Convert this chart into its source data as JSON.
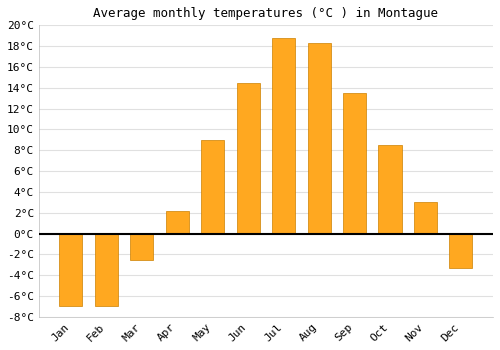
{
  "title": "Average monthly temperatures (°C ) in Montague",
  "months": [
    "Jan",
    "Feb",
    "Mar",
    "Apr",
    "May",
    "Jun",
    "Jul",
    "Aug",
    "Sep",
    "Oct",
    "Nov",
    "Dec"
  ],
  "values": [
    -7.0,
    -7.0,
    -2.5,
    2.2,
    9.0,
    14.5,
    18.8,
    18.3,
    13.5,
    8.5,
    3.0,
    -3.3
  ],
  "bar_color": "#FFA820",
  "bar_edge_color": "#CC8000",
  "background_color": "#ffffff",
  "grid_color": "#e0e0e0",
  "ylim": [
    -8,
    20
  ],
  "yticks": [
    -8,
    -6,
    -4,
    -2,
    0,
    2,
    4,
    6,
    8,
    10,
    12,
    14,
    16,
    18,
    20
  ],
  "title_fontsize": 9,
  "tick_fontsize": 8,
  "zero_line_color": "#000000",
  "bar_width": 0.65
}
